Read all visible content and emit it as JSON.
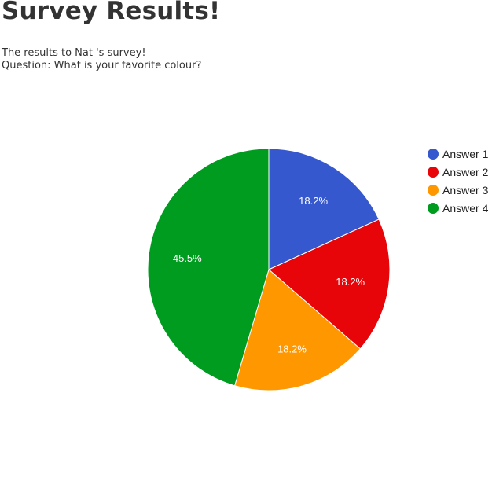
{
  "page": {
    "title": "Survey Results!",
    "intro": "The results to Nat 's survey!",
    "question": "Question: What is your favorite colour?"
  },
  "chart_data": {
    "type": "pie",
    "title": "",
    "categories": [
      "Answer 1",
      "Answer 2",
      "Answer 3",
      "Answer 4"
    ],
    "values": [
      2,
      2,
      2,
      5
    ],
    "percent_labels": [
      "18.2%",
      "18.2%",
      "18.2%",
      "45.5%"
    ],
    "colors": [
      "#3558cf",
      "#e8050a",
      "#ff9800",
      "#009c20"
    ],
    "start_angle": "12 o'clock, clockwise",
    "legend_position": "right"
  }
}
